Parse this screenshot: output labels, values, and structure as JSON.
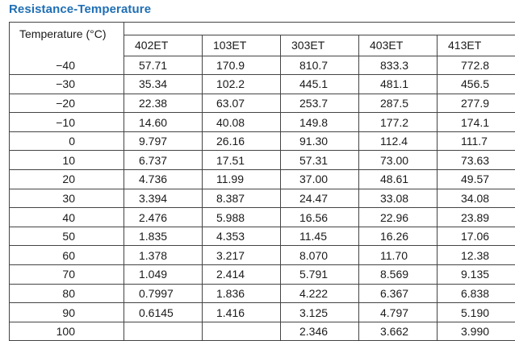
{
  "title": "Resistance-Temperature",
  "table": {
    "corner_header": "Temperature (°C)",
    "columns": [
      "402ET",
      "103ET",
      "303ET",
      "403ET",
      "413ET"
    ],
    "rows": [
      {
        "temp": "−40",
        "values": [
          "57.71",
          "170.9",
          "810.7",
          "833.3",
          "772.8"
        ]
      },
      {
        "temp": "−30",
        "values": [
          "35.34",
          "102.2",
          "445.1",
          "481.1",
          "456.5"
        ]
      },
      {
        "temp": "−20",
        "values": [
          "22.38",
          "63.07",
          "253.7",
          "287.5",
          "277.9"
        ]
      },
      {
        "temp": "−10",
        "values": [
          "14.60",
          "40.08",
          "149.8",
          "177.2",
          "174.1"
        ]
      },
      {
        "temp": "0",
        "values": [
          "9.797",
          "26.16",
          "91.30",
          "112.4",
          "111.7"
        ]
      },
      {
        "temp": "10",
        "values": [
          "6.737",
          "17.51",
          "57.31",
          "73.00",
          "73.63"
        ]
      },
      {
        "temp": "20",
        "values": [
          "4.736",
          "11.99",
          "37.00",
          "48.61",
          "49.57"
        ]
      },
      {
        "temp": "30",
        "values": [
          "3.394",
          "8.387",
          "24.47",
          "33.08",
          "34.08"
        ]
      },
      {
        "temp": "40",
        "values": [
          "2.476",
          "5.988",
          "16.56",
          "22.96",
          "23.89"
        ]
      },
      {
        "temp": "50",
        "values": [
          "1.835",
          "4.353",
          "11.45",
          "16.26",
          "17.06"
        ]
      },
      {
        "temp": "60",
        "values": [
          "1.378",
          "3.217",
          "8.070",
          "11.70",
          "12.38"
        ]
      },
      {
        "temp": "70",
        "values": [
          "1.049",
          "2.414",
          "5.791",
          "8.569",
          "9.135"
        ]
      },
      {
        "temp": "80",
        "values": [
          "0.7997",
          "1.836",
          "4.222",
          "6.367",
          "6.838"
        ]
      },
      {
        "temp": "90",
        "values": [
          "0.6145",
          "1.416",
          "3.125",
          "4.797",
          "5.190"
        ]
      },
      {
        "temp": "100",
        "values": [
          "",
          "",
          "2.346",
          "3.662",
          "3.990"
        ]
      }
    ]
  },
  "colors": {
    "title": "#1f6fb5",
    "rules": "#444444",
    "text": "#1a1a1a"
  }
}
